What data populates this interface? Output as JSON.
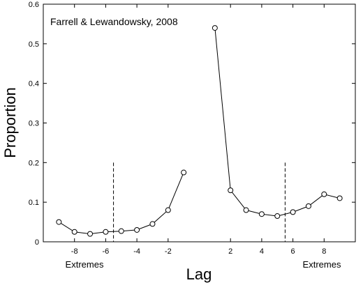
{
  "chart_data": {
    "type": "line",
    "title": "",
    "annotation": "Farrell & Lewandowsky, 2008",
    "xlabel": "Lag",
    "ylabel": "Proportion",
    "xlim": [
      -10,
      10
    ],
    "ylim": [
      0,
      0.6
    ],
    "x_ticks": [
      -8,
      -6,
      -4,
      -2,
      2,
      4,
      6,
      8
    ],
    "y_ticks": [
      0,
      0.1,
      0.2,
      0.3,
      0.4,
      0.5,
      0.6
    ],
    "x_tick_labels": [
      "-8",
      "-6",
      "-4",
      "-2",
      "2",
      "4",
      "6",
      "8"
    ],
    "y_tick_labels": [
      "0",
      "0.1",
      "0.2",
      "0.3",
      "0.4",
      "0.5",
      "0.6"
    ],
    "grid": false,
    "series": [
      {
        "x": [
          -9,
          -8,
          -7,
          -6,
          -5,
          -4,
          -3,
          -2,
          -1
        ],
        "y": [
          0.05,
          0.025,
          0.02,
          0.025,
          0.027,
          0.03,
          0.045,
          0.08,
          0.175
        ]
      },
      {
        "x": [
          1,
          2,
          3,
          4,
          5,
          6,
          7,
          8,
          9
        ],
        "y": [
          0.54,
          0.13,
          0.08,
          0.07,
          0.065,
          0.075,
          0.09,
          0.12,
          0.11
        ]
      }
    ],
    "dashed_lines_x": [
      -5.5,
      5.5
    ],
    "region_labels": [
      "Extremes",
      "Extremes"
    ]
  }
}
